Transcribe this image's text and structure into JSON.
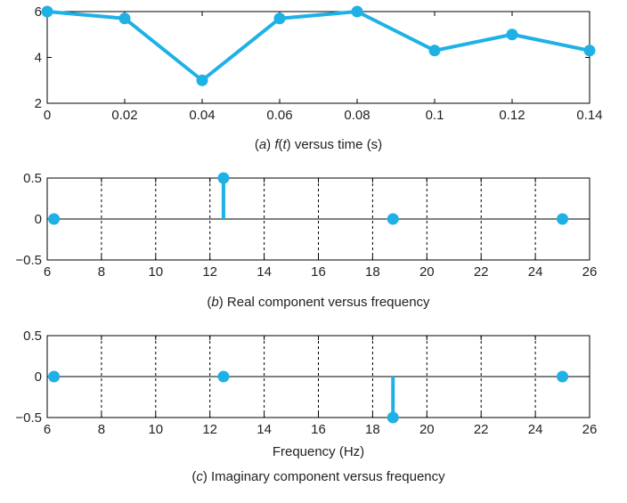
{
  "chart_data": [
    {
      "type": "line",
      "caption": "(a) f(t) versus time (s)",
      "caption_parts": {
        "letter": "a",
        "var": "f",
        "arg": "t",
        "rest": " versus time (s)"
      },
      "xlabel": "",
      "ylabel": "",
      "xlim": [
        0,
        0.14
      ],
      "ylim": [
        2,
        6
      ],
      "xticks": [
        "0",
        "0.02",
        "0.04",
        "0.06",
        "0.08",
        "0.1",
        "0.12",
        "0.14"
      ],
      "xtick_values": [
        0,
        0.02,
        0.04,
        0.06,
        0.08,
        0.1,
        0.12,
        0.14
      ],
      "yticks": [
        "2",
        "4",
        "6"
      ],
      "ytick_values": [
        2,
        4,
        6
      ],
      "grid": false,
      "color": "#1fb1e6",
      "x": [
        0,
        0.02,
        0.04,
        0.06,
        0.08,
        0.1,
        0.12,
        0.14
      ],
      "y": [
        6,
        5.7,
        3,
        5.7,
        6,
        4.3,
        5,
        4.3
      ]
    },
    {
      "type": "stem",
      "caption": "(b) Real component versus frequency",
      "caption_parts": {
        "letter": "b",
        "rest": " Real component versus frequency"
      },
      "xlabel": "",
      "ylabel": "",
      "xlim": [
        6,
        26
      ],
      "ylim": [
        -0.5,
        0.5
      ],
      "xticks": [
        "6",
        "8",
        "10",
        "12",
        "14",
        "16",
        "18",
        "20",
        "22",
        "24",
        "26"
      ],
      "xtick_values": [
        6,
        8,
        10,
        12,
        14,
        16,
        18,
        20,
        22,
        24,
        26
      ],
      "yticks": [
        "0.5",
        "0",
        "−0.5"
      ],
      "ytick_values": [
        0.5,
        0,
        -0.5
      ],
      "grid": "vertical dashed",
      "color": "#1fb1e6",
      "x": [
        6.25,
        12.5,
        18.75,
        25
      ],
      "y": [
        0,
        0.5,
        0,
        0
      ]
    },
    {
      "type": "stem",
      "caption": "(c) Imaginary component versus frequency",
      "caption_parts": {
        "letter": "c",
        "rest": " Imaginary component versus frequency"
      },
      "xlabel": "Frequency (Hz)",
      "ylabel": "",
      "xlim": [
        6,
        26
      ],
      "ylim": [
        -0.5,
        0.5
      ],
      "xticks": [
        "6",
        "8",
        "10",
        "12",
        "14",
        "16",
        "18",
        "20",
        "22",
        "24",
        "26"
      ],
      "xtick_values": [
        6,
        8,
        10,
        12,
        14,
        16,
        18,
        20,
        22,
        24,
        26
      ],
      "yticks": [
        "0.5",
        "0",
        "−0.5"
      ],
      "ytick_values": [
        0.5,
        0,
        -0.5
      ],
      "grid": "vertical dashed",
      "color": "#1fb1e6",
      "x": [
        6.25,
        12.5,
        18.75,
        25
      ],
      "y": [
        0,
        0,
        -0.5,
        0
      ]
    }
  ]
}
